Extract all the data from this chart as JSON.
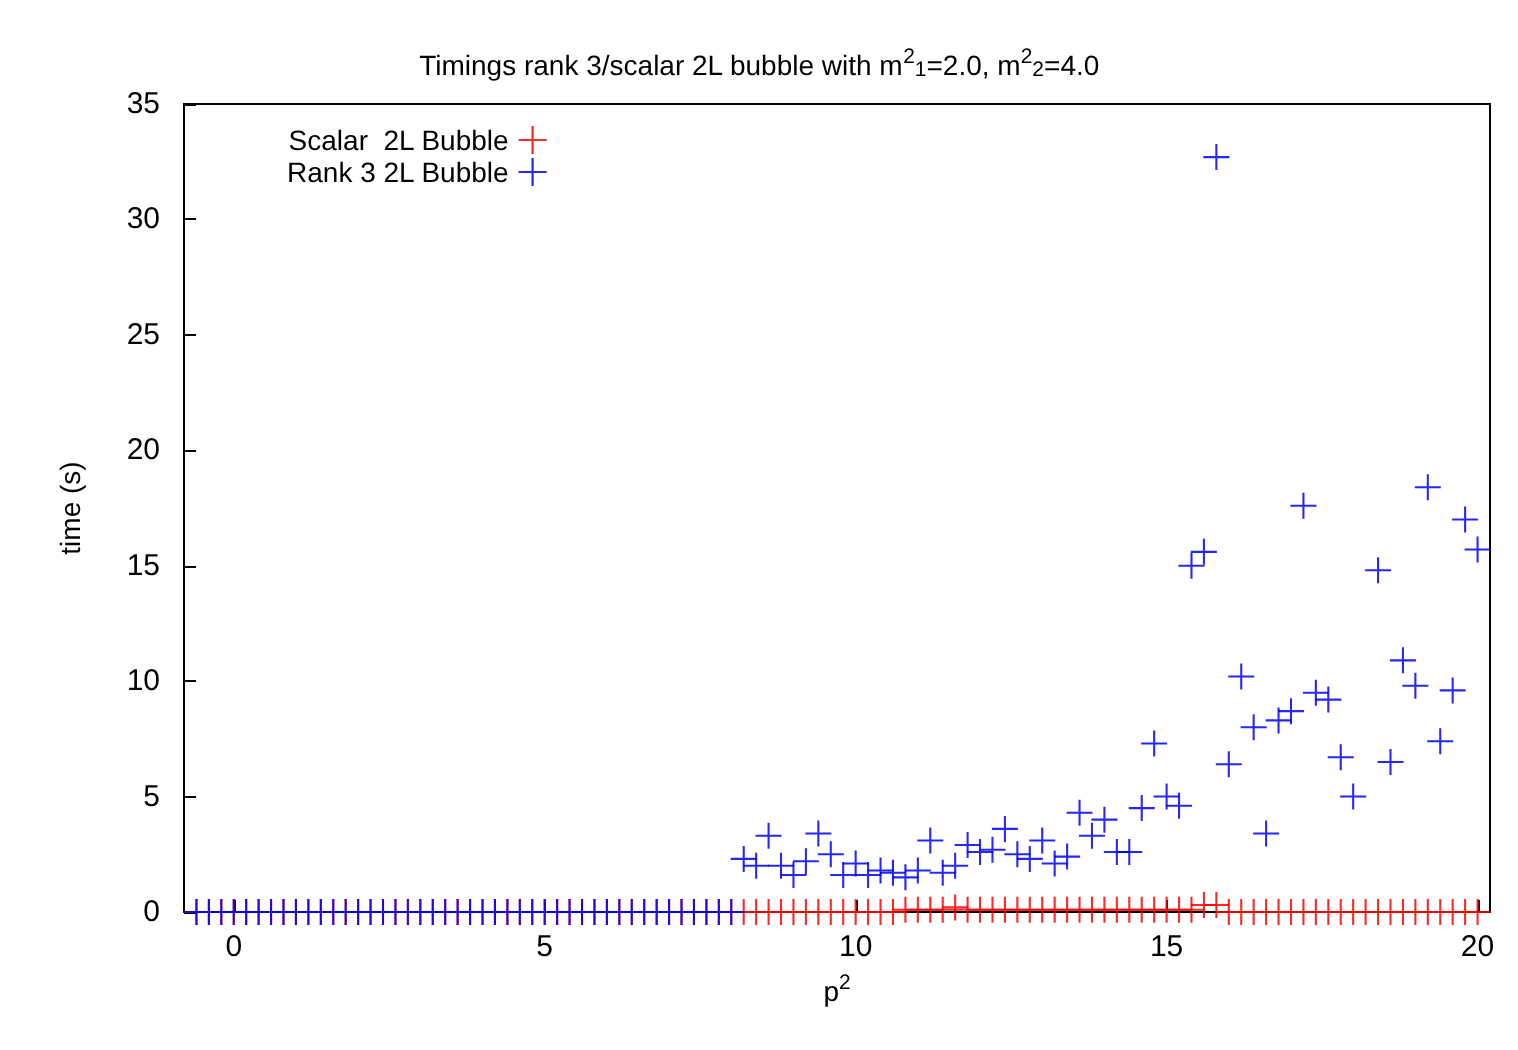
{
  "chart_data": {
    "type": "scatter",
    "title": "Timings rank 3/scalar 2L bubble with m$^{2}$$_{1}$=2.0, m$^{2}$$_{2}$=4.0",
    "xlabel": "p$^{2}$",
    "ylabel": "time (s)",
    "xlim": [
      -0.8,
      20.2
    ],
    "xticks": [
      0,
      5,
      10,
      15,
      20
    ],
    "ylim": [
      0,
      35
    ],
    "yticks": [
      0,
      5,
      10,
      15,
      20,
      25,
      30,
      35
    ],
    "grid": false,
    "legend": "top left",
    "marker": "cross",
    "series": [
      {
        "name": "Scalar  2L Bubble",
        "color": "#ff0000",
        "x": [
          -0.6,
          -0.4,
          -0.2,
          0,
          0.2,
          0.4,
          0.6,
          0.8,
          1,
          1.2,
          1.4,
          1.6,
          1.8,
          2,
          2.2,
          2.4,
          2.6,
          2.8,
          3,
          3.2,
          3.4,
          3.6,
          3.8,
          4,
          4.2,
          4.4,
          4.6,
          4.8,
          5,
          5.2,
          5.4,
          5.6,
          5.8,
          6,
          6.2,
          6.4,
          6.6,
          6.8,
          7,
          7.2,
          7.4,
          7.6,
          7.8,
          8,
          8.2,
          8.4,
          8.6,
          8.8,
          9,
          9.2,
          9.4,
          9.6,
          9.8,
          10,
          10.2,
          10.4,
          10.6,
          10.8,
          11,
          11.2,
          11.4,
          11.6,
          11.8,
          12,
          12.2,
          12.4,
          12.6,
          12.8,
          13,
          13.2,
          13.4,
          13.6,
          13.8,
          14,
          14.2,
          14.4,
          14.6,
          14.8,
          15,
          15.2,
          15.4,
          15.6,
          15.8,
          16,
          16.2,
          16.4,
          16.6,
          16.8,
          17,
          17.2,
          17.4,
          17.6,
          17.8,
          18,
          18.2,
          18.4,
          18.6,
          18.8,
          19,
          19.2,
          19.4,
          19.6,
          19.8,
          20
        ],
        "values": [
          0,
          0,
          0,
          0,
          0,
          0,
          0,
          0,
          0,
          0,
          0,
          0,
          0,
          0,
          0,
          0,
          0,
          0,
          0,
          0,
          0,
          0,
          0,
          0,
          0,
          0,
          0,
          0,
          0,
          0,
          0,
          0,
          0,
          0,
          0,
          0,
          0,
          0,
          0,
          0,
          0,
          0,
          0,
          0,
          0,
          0,
          0,
          0,
          0,
          0,
          0,
          0,
          0,
          0,
          0,
          0,
          0,
          0.1,
          0.1,
          0.1,
          0.1,
          0.2,
          0.1,
          0.1,
          0.1,
          0.1,
          0.1,
          0.1,
          0.1,
          0.1,
          0.1,
          0.1,
          0.1,
          0.1,
          0.1,
          0.1,
          0.1,
          0.1,
          0.1,
          0.1,
          0.1,
          0.3,
          0.3,
          0,
          0,
          0,
          0,
          0,
          0,
          0,
          0,
          0,
          0,
          0,
          0,
          0,
          0,
          0,
          0,
          0,
          0,
          0,
          0,
          0
        ]
      },
      {
        "name": "Rank 3 2L Bubble",
        "color": "#0000ff",
        "x": [
          -0.6,
          -0.4,
          -0.2,
          0,
          0.2,
          0.4,
          0.6,
          0.8,
          1,
          1.2,
          1.4,
          1.6,
          1.8,
          2,
          2.2,
          2.4,
          2.6,
          2.8,
          3,
          3.2,
          3.4,
          3.6,
          3.8,
          4,
          4.2,
          4.4,
          4.6,
          4.8,
          5,
          5.2,
          5.4,
          5.6,
          5.8,
          6,
          6.2,
          6.4,
          6.6,
          6.8,
          7,
          7.2,
          7.4,
          7.6,
          7.8,
          8,
          8.2,
          8.4,
          8.6,
          8.8,
          9,
          9.2,
          9.4,
          9.6,
          9.8,
          10,
          10.2,
          10.4,
          10.6,
          10.8,
          11,
          11.2,
          11.4,
          11.6,
          11.8,
          12,
          12.2,
          12.4,
          12.6,
          12.8,
          13,
          13.2,
          13.4,
          13.6,
          13.8,
          14,
          14.2,
          14.4,
          14.6,
          14.8,
          15,
          15.2,
          15.4,
          15.6,
          15.8,
          16,
          16.2,
          16.4,
          16.6,
          16.8,
          17,
          17.2,
          17.4,
          17.6,
          17.8,
          18,
          18.4,
          18.6,
          18.8,
          19,
          19.2,
          19.4,
          19.6,
          19.8,
          20
        ],
        "values": [
          0,
          0,
          0,
          0,
          0,
          0,
          0,
          0,
          0,
          0,
          0,
          0,
          0,
          0,
          0,
          0,
          0,
          0,
          0,
          0,
          0,
          0,
          0,
          0,
          0,
          0,
          0,
          0,
          0,
          0,
          0,
          0,
          0,
          0,
          0,
          0,
          0,
          0,
          0,
          0,
          0,
          0,
          0,
          0,
          2.3,
          2.0,
          3.3,
          2.0,
          1.6,
          2.2,
          3.4,
          2.5,
          1.6,
          2.1,
          1.6,
          1.8,
          1.7,
          1.5,
          1.8,
          3.1,
          1.7,
          2.0,
          2.9,
          2.6,
          2.7,
          3.6,
          2.5,
          2.3,
          3.1,
          2.1,
          2.4,
          4.3,
          3.3,
          4.0,
          2.6,
          2.6,
          4.5,
          7.3,
          5.0,
          4.6,
          15.0,
          15.6,
          32.7,
          6.4,
          10.2,
          8.0,
          3.4,
          8.3,
          8.7,
          17.6,
          9.5,
          9.2,
          6.7,
          5.0,
          14.8,
          6.5,
          10.9,
          9.8,
          18.4,
          7.4,
          9.6,
          17.0,
          15.7
        ]
      }
    ]
  }
}
